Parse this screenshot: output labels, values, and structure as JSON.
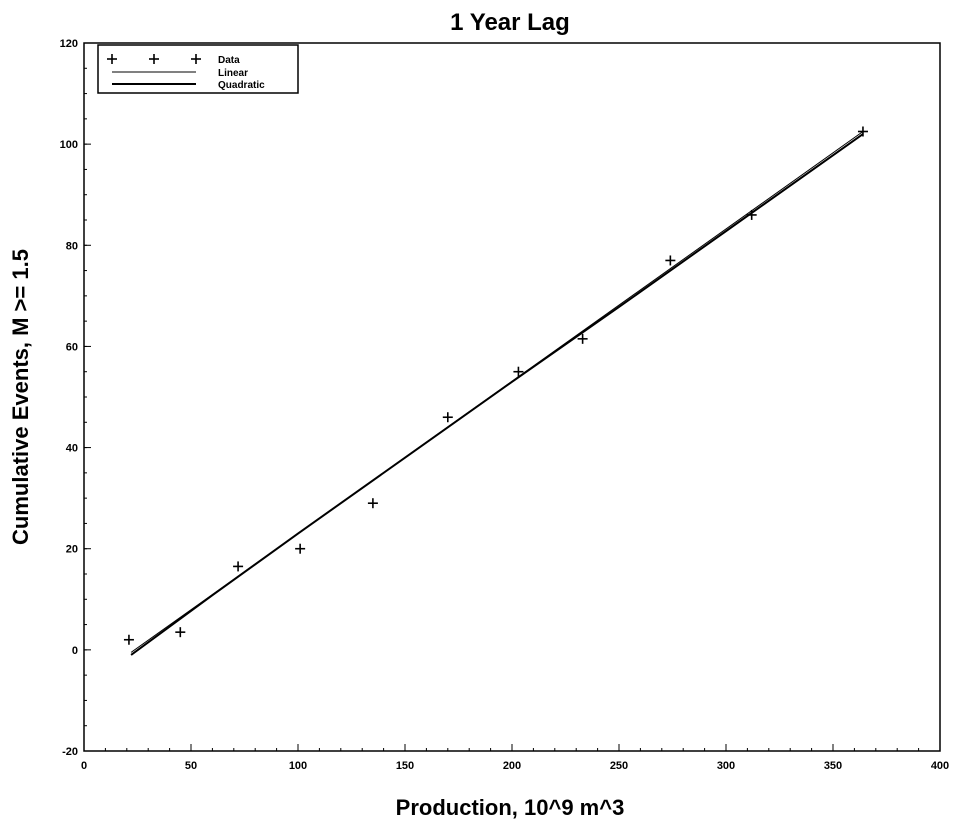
{
  "chart_data": {
    "type": "scatter",
    "title": "1 Year Lag",
    "xlabel": "Production, 10^9 m^3",
    "ylabel": "Cumulative Events, M >= 1.5",
    "xlim": [
      0,
      400
    ],
    "ylim": [
      -20,
      120
    ],
    "xticks": [
      0,
      50,
      100,
      150,
      200,
      250,
      300,
      350,
      400
    ],
    "yticks": [
      -20,
      0,
      20,
      40,
      60,
      80,
      100,
      120
    ],
    "grid": false,
    "legend_position": "top-left",
    "series": [
      {
        "name": "Data",
        "kind": "points",
        "marker": "+",
        "x": [
          21,
          45,
          72,
          101,
          135,
          170,
          203,
          233,
          274,
          312,
          364
        ],
        "y": [
          2,
          3.5,
          16.5,
          20,
          29,
          46,
          55,
          61.5,
          77,
          86,
          102.5
        ]
      },
      {
        "name": "Linear",
        "kind": "line",
        "x": [
          22,
          364
        ],
        "y": [
          -0.5,
          102.5
        ]
      },
      {
        "name": "Quadratic",
        "kind": "line",
        "x": [
          22,
          60,
          100,
          150,
          200,
          250,
          300,
          364
        ],
        "y": [
          -1,
          10.8,
          23,
          38,
          53,
          67.8,
          82.8,
          102
        ]
      }
    ]
  }
}
